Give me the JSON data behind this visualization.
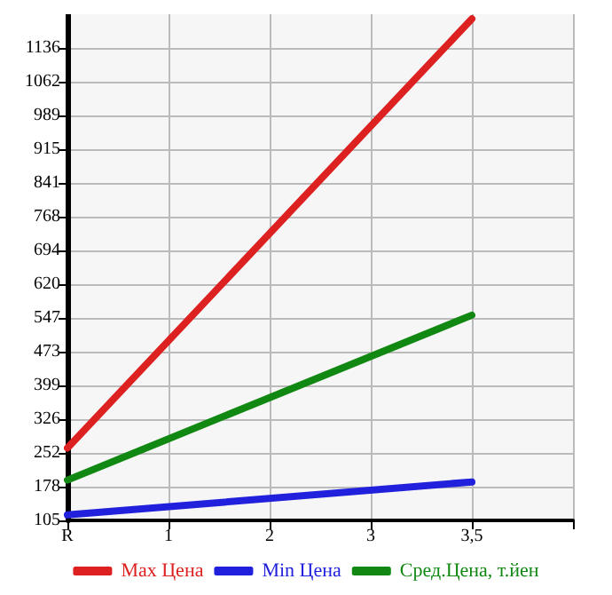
{
  "chart_data": {
    "type": "line",
    "categories": [
      "R",
      "1",
      "2",
      "3",
      "3,5",
      null
    ],
    "series": [
      {
        "name": "Max Цена",
        "color": "#dd2020",
        "values": [
          263,
          null,
          null,
          null,
          1200,
          null
        ]
      },
      {
        "name": "Min Цена",
        "color": "#2020dd",
        "values": [
          117,
          null,
          null,
          null,
          189,
          null
        ]
      },
      {
        "name": "Сред.Цена, т.йен",
        "color": "#118811",
        "values": [
          193,
          null,
          null,
          null,
          553,
          null
        ]
      }
    ],
    "ylim": [
      105,
      1210
    ],
    "yticks": [
      105,
      178,
      252,
      326,
      399,
      473,
      547,
      620,
      694,
      768,
      841,
      915,
      989,
      1062,
      1136
    ],
    "grid": true,
    "legend": "bottom",
    "marker": "none",
    "line_style": "solid"
  }
}
